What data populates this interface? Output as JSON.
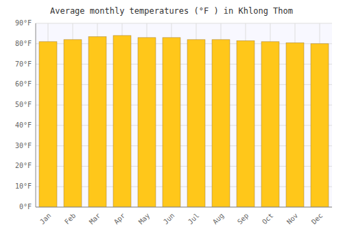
{
  "chart_data": {
    "type": "bar",
    "title": "Average monthly temperatures (°F ) in Khlong Thom",
    "categories": [
      "Jan",
      "Feb",
      "Mar",
      "Apr",
      "May",
      "Jun",
      "Jul",
      "Aug",
      "Sep",
      "Oct",
      "Nov",
      "Dec"
    ],
    "values": [
      81,
      82,
      83.5,
      84,
      83,
      83,
      82,
      82,
      81.5,
      81,
      80.5,
      80
    ],
    "color": "#FFC71A",
    "ylim": [
      0,
      90
    ],
    "yticks": [
      {
        "value": 0,
        "label": "0°F"
      },
      {
        "value": 10,
        "label": "10°F"
      },
      {
        "value": 20,
        "label": "20°F"
      },
      {
        "value": 30,
        "label": "30°F"
      },
      {
        "value": 40,
        "label": "40°F"
      },
      {
        "value": 50,
        "label": "50°F"
      },
      {
        "value": 60,
        "label": "60°F"
      },
      {
        "value": 70,
        "label": "70°F"
      },
      {
        "value": 80,
        "label": "80°F"
      },
      {
        "value": 90,
        "label": "90°F"
      }
    ],
    "grid": true
  }
}
